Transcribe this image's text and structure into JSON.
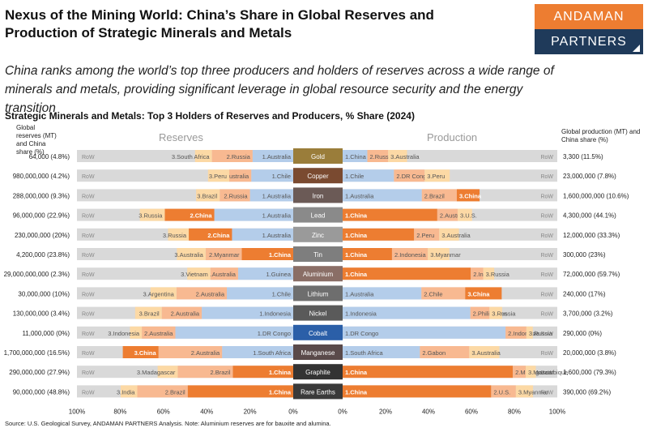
{
  "title": "Nexus of the Mining World: China’s Share in Global Reserves and Production of Strategic Minerals and Metals",
  "logo": {
    "line1": "ANDAMAN",
    "line2": "PARTNERS"
  },
  "subtitle": "China ranks among the world’s top three producers and holders of reserves across a wide range of minerals and metals, providing significant leverage in global resource security and the energy transition",
  "source": "Source: U.S. Geological Survey, ANDAMAN PARTNERS Analysis. Note: Aluminium reserves are for bauxite and alumina.",
  "colors": {
    "china": "#ed7d31",
    "first": "#b4cdea",
    "second": "#f8b991",
    "third": "#fcd9a5",
    "row": "#d9d9d9"
  },
  "chart_data": {
    "type": "bar",
    "title": "Strategic Minerals and Metals: Top 3 Holders of Reserves and Producers, % Share (2024)",
    "reserves_label": "Reserves",
    "production_label": "Production",
    "left_header": "Global reserves (MT) and China share (%)",
    "right_header": "Global production (MT) and China share (%)",
    "row_label": "RoW",
    "xticks_reserves": [
      "100%",
      "80%",
      "60%",
      "40%",
      "20%",
      "0%"
    ],
    "xticks_production": [
      "0%",
      "20%",
      "40%",
      "60%",
      "80%",
      "100%"
    ],
    "xlim": [
      0,
      100
    ],
    "rows": [
      {
        "mineral": "Gold",
        "global_reserves": "64,000 (4.8%)",
        "global_production": "3,300 (11.5%)",
        "reserves": [
          {
            "label": "1.Australia",
            "value": 18.8,
            "rank": 1
          },
          {
            "label": "2.Russia",
            "value": 18.8,
            "rank": 2
          },
          {
            "label": "3.South Africa",
            "value": 7.8,
            "rank": 3
          }
        ],
        "production": [
          {
            "label": "1.China",
            "value": 11.5,
            "rank": 1
          },
          {
            "label": "2.Russia",
            "value": 9.7,
            "rank": 2
          },
          {
            "label": "3.Australia",
            "value": 8.8,
            "rank": 3
          }
        ]
      },
      {
        "mineral": "Copper",
        "global_reserves": "980,000,000 (4.2%)",
        "global_production": "23,000,000 (7.8%)",
        "reserves": [
          {
            "label": "1.Chile",
            "value": 19.4,
            "rank": 1
          },
          {
            "label": "2.Australia",
            "value": 10.2,
            "rank": 2
          },
          {
            "label": "3.Peru",
            "value": 9.8,
            "rank": 3
          }
        ],
        "production": [
          {
            "label": "1.Chile",
            "value": 23.9,
            "rank": 1
          },
          {
            "label": "2.DR Congo",
            "value": 14.3,
            "rank": 2
          },
          {
            "label": "3.Peru",
            "value": 11.7,
            "rank": 3
          }
        ]
      },
      {
        "mineral": "Iron",
        "global_reserves": "288,000,000 (9.3%)",
        "global_production": "1,600,000,000 (10.6%)",
        "reserves": [
          {
            "label": "1.Australia",
            "value": 20.0,
            "rank": 1
          },
          {
            "label": "2.Russia",
            "value": 14.0,
            "rank": 2
          },
          {
            "label": "3.Brazil",
            "value": 10.9,
            "rank": 3
          }
        ],
        "production": [
          {
            "label": "1.Australia",
            "value": 36.9,
            "rank": 1
          },
          {
            "label": "2.Brazil",
            "value": 16.3,
            "rank": 2
          },
          {
            "label": "3.China",
            "value": 10.6,
            "rank": 3,
            "china": true
          }
        ]
      },
      {
        "mineral": "Lead",
        "global_reserves": "96,000,000 (22.9%)",
        "global_production": "4,300,000 (44.1%)",
        "reserves": [
          {
            "label": "1.Australia",
            "value": 36.5,
            "rank": 1
          },
          {
            "label": "2.China",
            "value": 22.9,
            "rank": 2,
            "china": true
          },
          {
            "label": "3.Russia",
            "value": 11.5,
            "rank": 3
          }
        ],
        "production": [
          {
            "label": "1.China",
            "value": 44.1,
            "rank": 1,
            "china": true
          },
          {
            "label": "2.Australia",
            "value": 9.5,
            "rank": 2
          },
          {
            "label": "3.U.S.",
            "value": 6.7,
            "rank": 3
          }
        ]
      },
      {
        "mineral": "Zinc",
        "global_reserves": "230,000,000 (20%)",
        "global_production": "12,000,000 (33.3%)",
        "reserves": [
          {
            "label": "1.Australia",
            "value": 28.3,
            "rank": 1
          },
          {
            "label": "2.China",
            "value": 20.0,
            "rank": 2,
            "china": true
          },
          {
            "label": "3.Russia",
            "value": 9.6,
            "rank": 3
          }
        ],
        "production": [
          {
            "label": "1.China",
            "value": 33.3,
            "rank": 1,
            "china": true
          },
          {
            "label": "2.Peru",
            "value": 11.7,
            "rank": 2
          },
          {
            "label": "3.Australia",
            "value": 9.2,
            "rank": 3
          }
        ]
      },
      {
        "mineral": "Tin",
        "global_reserves": "4,200,000 (23.8%)",
        "global_production": "300,000 (23%)",
        "reserves": [
          {
            "label": "1.China",
            "value": 23.8,
            "rank": 1,
            "china": true
          },
          {
            "label": "2.Myanmar",
            "value": 16.7,
            "rank": 2
          },
          {
            "label": "3.Australia",
            "value": 13.3,
            "rank": 3
          }
        ],
        "production": [
          {
            "label": "1.China",
            "value": 23.0,
            "rank": 1,
            "china": true
          },
          {
            "label": "2.Indonesia",
            "value": 16.7,
            "rank": 2
          },
          {
            "label": "3.Myanmar",
            "value": 10.0,
            "rank": 3
          }
        ]
      },
      {
        "mineral": "Aluminium",
        "global_reserves": "29,000,000,000 (2.3%)",
        "global_production": "72,000,000 (59.7%)",
        "reserves": [
          {
            "label": "1.Guinea",
            "value": 25.5,
            "rank": 1
          },
          {
            "label": "2.Australia",
            "value": 12.8,
            "rank": 2
          },
          {
            "label": "3.Vietnam",
            "value": 10.7,
            "rank": 3
          }
        ],
        "production": [
          {
            "label": "1.China",
            "value": 59.7,
            "rank": 1,
            "china": true
          },
          {
            "label": "2.India",
            "value": 5.8,
            "rank": 2
          },
          {
            "label": "3.Russia",
            "value": 5.1,
            "rank": 3
          }
        ]
      },
      {
        "mineral": "Lithium",
        "global_reserves": "30,000,000 (10%)",
        "global_production": "240,000 (17%)",
        "reserves": [
          {
            "label": "1.Chile",
            "value": 30.7,
            "rank": 1
          },
          {
            "label": "2.Australia",
            "value": 23.3,
            "rank": 2
          },
          {
            "label": "3.Argentina",
            "value": 12.0,
            "rank": 3
          }
        ],
        "production": [
          {
            "label": "1.Australia",
            "value": 36.7,
            "rank": 1
          },
          {
            "label": "2.Chile",
            "value": 20.4,
            "rank": 2
          },
          {
            "label": "3.China",
            "value": 17.0,
            "rank": 3,
            "china": true
          }
        ]
      },
      {
        "mineral": "Nickel",
        "global_reserves": "130,000,000 (3.4%)",
        "global_production": "3,700,000 (3.2%)",
        "reserves": [
          {
            "label": "1.Indonesia",
            "value": 42.3,
            "rank": 1
          },
          {
            "label": "2.Australia",
            "value": 18.5,
            "rank": 2
          },
          {
            "label": "3.Brazil",
            "value": 12.3,
            "rank": 3
          }
        ],
        "production": [
          {
            "label": "1.Indonesia",
            "value": 59.5,
            "rank": 1
          },
          {
            "label": "2.Philippines",
            "value": 8.9,
            "rank": 2
          },
          {
            "label": "3.Russia",
            "value": 5.9,
            "rank": 3
          }
        ]
      },
      {
        "mineral": "Cobalt",
        "global_reserves": "11,000,000 (0%)",
        "global_production": "290,000 (0%)",
        "reserves": [
          {
            "label": "1.DR Congo",
            "value": 54.5,
            "rank": 1
          },
          {
            "label": "2.Australia",
            "value": 15.5,
            "rank": 2
          },
          {
            "label": "3.Indonesia",
            "value": 5.5,
            "rank": 3
          }
        ],
        "production": [
          {
            "label": "1.DR Congo",
            "value": 75.9,
            "rank": 1
          },
          {
            "label": "2.Indonesia",
            "value": 9.7,
            "rank": 2
          },
          {
            "label": "3.Russia",
            "value": 3.0,
            "rank": 3
          }
        ]
      },
      {
        "mineral": "Manganese",
        "global_reserves": "1,700,000,000 (16.5%)",
        "global_production": "20,000,000 (3.8%)",
        "reserves": [
          {
            "label": "1.South Africa",
            "value": 32.9,
            "rank": 1
          },
          {
            "label": "2.Australia",
            "value": 29.4,
            "rank": 2
          },
          {
            "label": "3.China",
            "value": 16.5,
            "rank": 3,
            "china": true
          }
        ],
        "production": [
          {
            "label": "1.South Africa",
            "value": 36.0,
            "rank": 1
          },
          {
            "label": "2.Gabon",
            "value": 23.0,
            "rank": 2
          },
          {
            "label": "3.Australia",
            "value": 14.0,
            "rank": 3
          }
        ]
      },
      {
        "mineral": "Graphite",
        "global_reserves": "290,000,000 (27.9%)",
        "global_production": "1,600,000 (79.3%)",
        "reserves": [
          {
            "label": "1.China",
            "value": 27.9,
            "rank": 1,
            "china": true
          },
          {
            "label": "2.Brazil",
            "value": 25.5,
            "rank": 2
          },
          {
            "label": "3.Madagascar",
            "value": 9.3,
            "rank": 3
          }
        ],
        "production": [
          {
            "label": "1.China",
            "value": 79.3,
            "rank": 1,
            "china": true
          },
          {
            "label": "2.Madagascar",
            "value": 6.0,
            "rank": 2
          },
          {
            "label": "3.Mozambique",
            "value": 4.7,
            "rank": 3
          }
        ]
      },
      {
        "mineral": "Rare Earths",
        "global_reserves": "90,000,000 (48.8%)",
        "global_production": "390,000 (69.2%)",
        "reserves": [
          {
            "label": "1.China",
            "value": 48.8,
            "rank": 1,
            "china": true
          },
          {
            "label": "2.Brazil",
            "value": 23.3,
            "rank": 2
          },
          {
            "label": "3.India",
            "value": 7.7,
            "rank": 3
          }
        ],
        "production": [
          {
            "label": "1.China",
            "value": 69.2,
            "rank": 1,
            "china": true
          },
          {
            "label": "2.U.S.",
            "value": 11.5,
            "rank": 2
          },
          {
            "label": "3.Myanmar",
            "value": 8.0,
            "rank": 3
          }
        ]
      }
    ]
  }
}
